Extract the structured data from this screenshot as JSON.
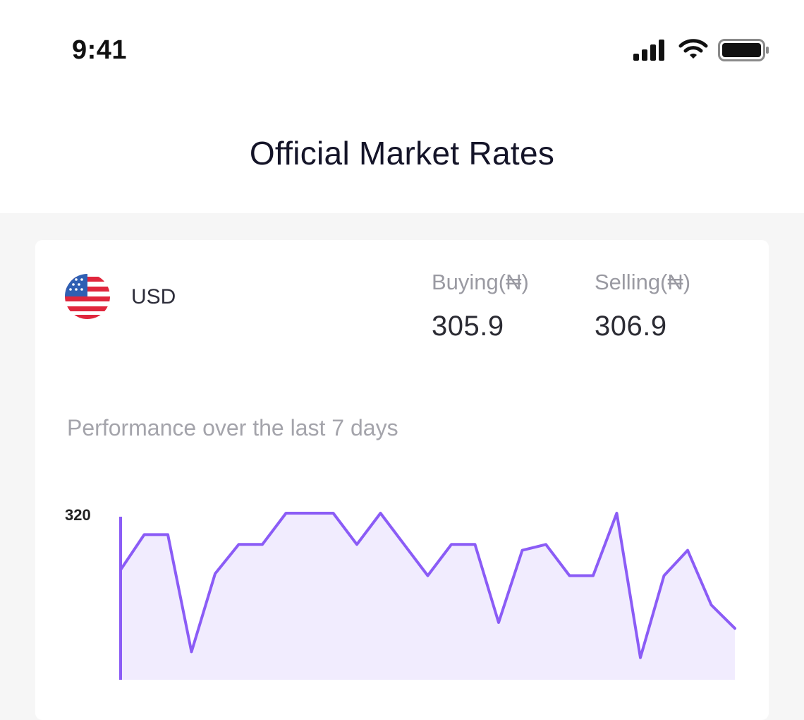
{
  "status_bar": {
    "time": "9:41",
    "icons": [
      "signal-icon",
      "wifi-icon",
      "battery-icon"
    ]
  },
  "header": {
    "title": "Official Market Rates"
  },
  "rate_card": {
    "flag_icon": "us-flag-icon",
    "currency": "USD",
    "buying_label": "Buying(₦)",
    "buying_value": "305.9",
    "selling_label": "Selling(₦)",
    "selling_value": "306.9",
    "performance_label": "Performance over the last 7 days"
  },
  "colors": {
    "accent": "#8b5cf6",
    "fill": "#f1ecfe"
  },
  "chart_data": {
    "type": "area",
    "title": "",
    "xlabel": "",
    "ylabel": "",
    "y_tick_labels": [
      "320"
    ],
    "ylim": [
      308,
      320
    ],
    "series": [
      {
        "values": [
          317.1,
          318.9,
          318.9,
          312.9,
          316.9,
          318.4,
          318.4,
          320,
          320,
          320,
          318.4,
          320,
          318.4,
          316.8,
          318.4,
          318.4,
          314.4,
          318.1,
          318.4,
          316.8,
          316.8,
          320,
          312.6,
          316.8,
          318.1,
          315.3,
          314.1
        ]
      }
    ]
  }
}
